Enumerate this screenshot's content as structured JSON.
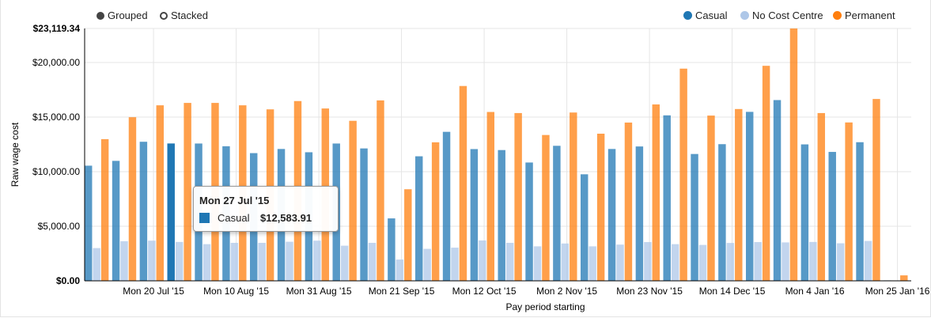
{
  "controls": [
    {
      "label": "Grouped",
      "selected": true
    },
    {
      "label": "Stacked",
      "selected": false
    }
  ],
  "legend": [
    {
      "label": "Casual",
      "color": "#1f77b4"
    },
    {
      "label": "No Cost Centre",
      "color": "#aec7e8"
    },
    {
      "label": "Permanent",
      "color": "#ff7f0e"
    }
  ],
  "tooltip": {
    "title": "Mon 27 Jul '15",
    "series": "Casual",
    "value": "$12,583.91",
    "color": "#1f77b4"
  },
  "chart_data": {
    "type": "bar",
    "xlabel": "Pay period starting",
    "ylabel": "Raw wage cost",
    "ylim": [
      0,
      23119.34
    ],
    "y_ticks": [
      "$0.00",
      "$5,000.00",
      "$10,000.00",
      "$15,000.00",
      "$20,000.00",
      "$23,119.34"
    ],
    "y_tick_values": [
      0,
      5000,
      10000,
      15000,
      20000,
      23119.34
    ],
    "x_tick_labels": [
      {
        "index": 2,
        "label": "Mon 20 Jul '15"
      },
      {
        "index": 5,
        "label": "Mon 10 Aug '15"
      },
      {
        "index": 8,
        "label": "Mon 31 Aug '15"
      },
      {
        "index": 11,
        "label": "Mon 21 Sep '15"
      },
      {
        "index": 14,
        "label": "Mon 12 Oct '15"
      },
      {
        "index": 17,
        "label": "Mon 2 Nov '15"
      },
      {
        "index": 20,
        "label": "Mon 23 Nov '15"
      },
      {
        "index": 23,
        "label": "Mon 14 Dec '15"
      },
      {
        "index": 26,
        "label": "Mon 4 Jan '16"
      },
      {
        "index": 29,
        "label": "Mon 25 Jan '16"
      }
    ],
    "grid": true,
    "legend_position": "top-right",
    "highlight": {
      "series": 0,
      "index": 3
    },
    "series": [
      {
        "name": "Casual",
        "color": "#1f77b4",
        "values": [
          10550,
          10990,
          12740,
          12583.91,
          12580,
          12330,
          11700,
          12080,
          11780,
          12580,
          12130,
          5720,
          11410,
          13650,
          12070,
          11980,
          10840,
          12370,
          9760,
          12080,
          12310,
          15160,
          11620,
          12520,
          15480,
          16560,
          12500,
          11810,
          12700,
          40
        ]
      },
      {
        "name": "No Cost Centre",
        "color": "#aec7e8",
        "values": [
          3000,
          3630,
          3680,
          3560,
          3360,
          3480,
          3480,
          3580,
          3680,
          3220,
          3480,
          1950,
          2930,
          3040,
          3700,
          3480,
          3160,
          3420,
          3160,
          3320,
          3550,
          3360,
          3290,
          3470,
          3550,
          3520,
          3560,
          3440,
          3650,
          30
        ]
      },
      {
        "name": "Permanent",
        "color": "#ff7f0e",
        "values": [
          12980,
          14990,
          16080,
          16300,
          16300,
          16080,
          15710,
          16470,
          15790,
          14660,
          16530,
          8390,
          12690,
          17850,
          15470,
          15370,
          13360,
          15420,
          13480,
          14500,
          16160,
          19440,
          15140,
          15740,
          19700,
          23119.34,
          15370,
          14510,
          16660,
          500
        ]
      }
    ]
  }
}
